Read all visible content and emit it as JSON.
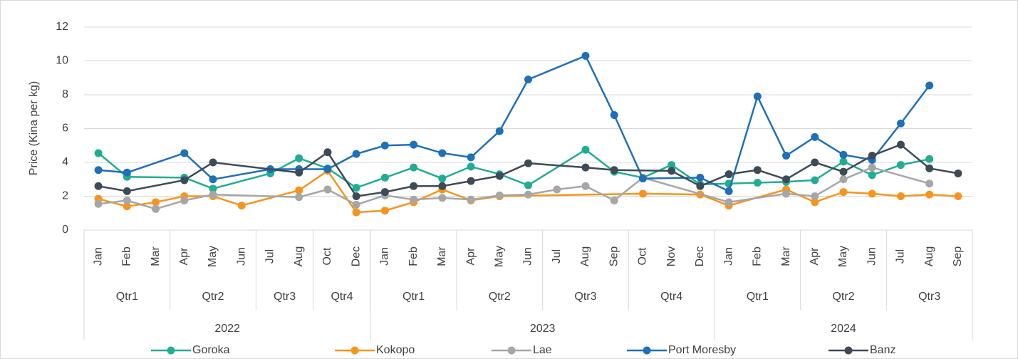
{
  "chart_data": {
    "type": "line",
    "y_label": "Price (Kina per kg)",
    "categories": [
      "Jan",
      "Feb",
      "Mar",
      "Apr",
      "May",
      "Jun",
      "Jul",
      "Aug",
      "Oct",
      "Dec",
      "Jan",
      "Feb",
      "Mar",
      "Apr",
      "May",
      "Jun",
      "Jul",
      "Aug",
      "Sep",
      "Oct",
      "Nov",
      "Dec",
      "Jan",
      "Feb",
      "Mar",
      "Apr",
      "May",
      "Jun",
      "Jul",
      "Aug",
      "Sep"
    ],
    "quarters": [
      "Qtr1",
      "Qtr1",
      "Qtr1",
      "Qtr2",
      "Qtr2",
      "Qtr2",
      "Qtr3",
      "Qtr3",
      "Qtr4",
      "Qtr4",
      "Qtr1",
      "Qtr1",
      "Qtr1",
      "Qtr2",
      "Qtr2",
      "Qtr2",
      "Qtr3",
      "Qtr3",
      "Qtr3",
      "Qtr4",
      "Qtr4",
      "Qtr4",
      "Qtr1",
      "Qtr1",
      "Qtr1",
      "Qtr2",
      "Qtr2",
      "Qtr2",
      "Qtr3",
      "Qtr3",
      "Qtr3"
    ],
    "years": [
      "2022",
      "2022",
      "2022",
      "2022",
      "2022",
      "2022",
      "2022",
      "2022",
      "2022",
      "2022",
      "2023",
      "2023",
      "2023",
      "2023",
      "2023",
      "2023",
      "2023",
      "2023",
      "2023",
      "2023",
      "2023",
      "2023",
      "2024",
      "2024",
      "2024",
      "2024",
      "2024",
      "2024",
      "2024",
      "2024",
      "2024"
    ],
    "series": [
      {
        "name": "Goroka",
        "color": "#21ad92",
        "values": [
          4.55,
          3.15,
          null,
          3.1,
          2.45,
          null,
          3.35,
          4.25,
          3.65,
          2.5,
          3.1,
          3.7,
          3.05,
          3.75,
          3.3,
          2.65,
          null,
          4.75,
          3.45,
          3.1,
          3.85,
          2.7,
          2.75,
          2.8,
          2.85,
          2.95,
          4.05,
          3.25,
          3.85,
          4.2,
          null
        ]
      },
      {
        "name": "Kokopo",
        "color": "#f7941d",
        "values": [
          1.85,
          1.4,
          1.65,
          2.0,
          2.0,
          1.45,
          null,
          2.35,
          3.5,
          1.05,
          1.15,
          1.65,
          2.4,
          1.75,
          2.0,
          null,
          null,
          null,
          null,
          2.15,
          null,
          2.1,
          1.45,
          null,
          2.4,
          1.65,
          2.25,
          2.15,
          2.0,
          2.1,
          2.0
        ]
      },
      {
        "name": "Lae",
        "color": "#a6a6a6",
        "values": [
          1.55,
          1.75,
          1.25,
          1.75,
          2.1,
          null,
          null,
          1.95,
          2.4,
          1.5,
          2.05,
          1.8,
          1.9,
          1.8,
          2.05,
          2.1,
          2.4,
          2.6,
          1.75,
          3.1,
          null,
          null,
          1.65,
          null,
          2.15,
          2.0,
          3.0,
          3.7,
          null,
          2.75,
          null
        ]
      },
      {
        "name": "Port Moresby",
        "color": "#1f6fb9",
        "values": [
          3.55,
          3.4,
          null,
          4.55,
          3.0,
          null,
          3.6,
          3.6,
          3.6,
          4.5,
          5.0,
          5.05,
          4.55,
          4.3,
          5.85,
          8.9,
          null,
          10.3,
          6.8,
          3.05,
          null,
          3.1,
          2.3,
          7.9,
          4.4,
          5.5,
          4.45,
          4.15,
          6.3,
          8.55,
          null
        ]
      },
      {
        "name": "Banz",
        "color": "#3d4a57",
        "values": [
          2.6,
          2.3,
          null,
          2.95,
          4.0,
          null,
          null,
          3.4,
          4.6,
          2.0,
          2.25,
          2.6,
          2.6,
          2.9,
          3.2,
          3.95,
          null,
          3.7,
          3.55,
          null,
          3.5,
          2.6,
          3.3,
          3.55,
          3.0,
          4.0,
          3.45,
          4.4,
          5.05,
          3.65,
          3.35
        ]
      }
    ],
    "connect_gaps": true,
    "ylim": [
      0,
      12
    ],
    "yticks": [
      0,
      2,
      4,
      6,
      8,
      10,
      12
    ],
    "grid": true,
    "legend": "bottom"
  }
}
